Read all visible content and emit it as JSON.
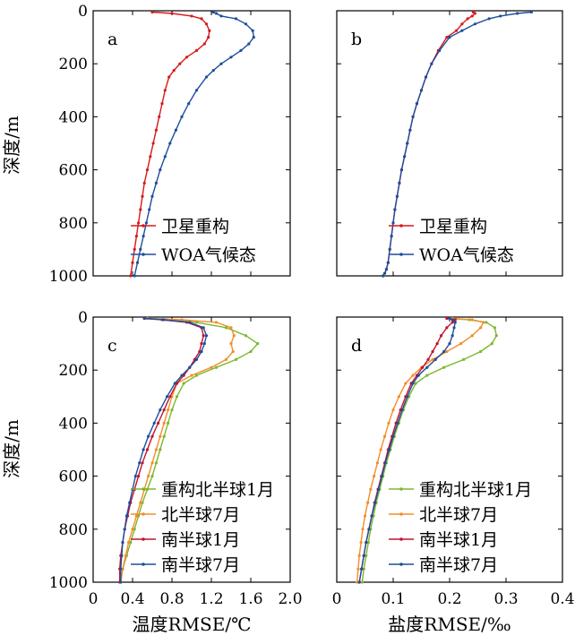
{
  "axis_labels": {
    "depth": "深度/m",
    "temp_x": "温度RMSE/℃",
    "sal_x": "盐度RMSE/‰"
  },
  "chart_data": [
    {
      "id": "a",
      "type": "line",
      "panel_label": "a",
      "xlim": [
        0,
        2.0
      ],
      "ylim": [
        0,
        1000
      ],
      "y_reversed": true,
      "show_x_ticks": false,
      "y_ticks": [
        "0",
        "200",
        "400",
        "600",
        "800",
        "1000"
      ],
      "legend": {
        "placement": "bottom-right"
      },
      "series": [
        {
          "name": "卫星重构",
          "color": "#d7191c",
          "x": [
            0.6,
            0.8,
            1.0,
            1.1,
            1.15,
            1.18,
            1.17,
            1.13,
            1.05,
            0.95,
            0.88,
            0.82,
            0.77,
            0.73,
            0.7,
            0.67,
            0.64,
            0.61,
            0.58,
            0.55,
            0.52,
            0.5,
            0.48,
            0.46,
            0.44,
            0.42,
            0.4,
            0.38
          ],
          "y": [
            5,
            10,
            20,
            30,
            50,
            75,
            100,
            125,
            150,
            175,
            200,
            225,
            250,
            300,
            350,
            400,
            450,
            500,
            550,
            600,
            650,
            700,
            750,
            800,
            850,
            900,
            950,
            1000
          ]
        },
        {
          "name": "WOA气候态",
          "color": "#1f4e9c",
          "x": [
            1.22,
            1.25,
            1.3,
            1.45,
            1.55,
            1.62,
            1.63,
            1.58,
            1.5,
            1.4,
            1.3,
            1.22,
            1.15,
            1.05,
            0.97,
            0.9,
            0.84,
            0.78,
            0.73,
            0.68,
            0.64,
            0.6,
            0.57,
            0.54,
            0.51,
            0.48,
            0.45,
            0.42
          ],
          "y": [
            5,
            10,
            20,
            30,
            50,
            75,
            100,
            125,
            150,
            175,
            200,
            225,
            250,
            300,
            350,
            400,
            450,
            500,
            550,
            600,
            650,
            700,
            750,
            800,
            850,
            900,
            950,
            1000
          ]
        }
      ]
    },
    {
      "id": "b",
      "type": "line",
      "panel_label": "b",
      "xlim": [
        0,
        0.4
      ],
      "ylim": [
        0,
        1000
      ],
      "y_reversed": true,
      "show_x_ticks": false,
      "show_y_ticks": false,
      "legend": {
        "placement": "bottom-right"
      },
      "series": [
        {
          "name": "卫星重构",
          "color": "#d7191c",
          "x": [
            0.242,
            0.245,
            0.24,
            0.232,
            0.222,
            0.212,
            0.195,
            0.18,
            0.168,
            0.158,
            0.15,
            0.142,
            0.135,
            0.13,
            0.125,
            0.12,
            0.115,
            0.111,
            0.107,
            0.103,
            0.1,
            0.097,
            0.094,
            0.091,
            0.088,
            0.085,
            0.082
          ],
          "y": [
            5,
            10,
            20,
            30,
            50,
            75,
            100,
            150,
            200,
            250,
            300,
            350,
            400,
            450,
            500,
            550,
            600,
            650,
            700,
            750,
            800,
            850,
            900,
            950,
            975,
            990,
            1000
          ]
        },
        {
          "name": "WOA气候态",
          "color": "#1f4e9c",
          "x": [
            0.345,
            0.32,
            0.29,
            0.27,
            0.245,
            0.222,
            0.2,
            0.182,
            0.168,
            0.158,
            0.15,
            0.142,
            0.135,
            0.13,
            0.125,
            0.12,
            0.115,
            0.111,
            0.107,
            0.103,
            0.1,
            0.097,
            0.094,
            0.091,
            0.088,
            0.085,
            0.082
          ],
          "y": [
            5,
            10,
            20,
            30,
            50,
            75,
            100,
            150,
            200,
            250,
            300,
            350,
            400,
            450,
            500,
            550,
            600,
            650,
            700,
            750,
            800,
            850,
            900,
            950,
            975,
            990,
            1000
          ]
        }
      ]
    },
    {
      "id": "c",
      "type": "line",
      "panel_label": "c",
      "xlim": [
        0,
        2.0
      ],
      "ylim": [
        0,
        1000
      ],
      "y_reversed": true,
      "x_ticks": [
        "0",
        "0.4",
        "0.8",
        "1.2",
        "1.6",
        "2.0"
      ],
      "y_ticks": [
        "0",
        "200",
        "400",
        "600",
        "800",
        "1000"
      ],
      "legend": {
        "placement": "bottom-right"
      },
      "series": [
        {
          "name": "重构北半球1月",
          "color": "#7cb82f",
          "x": [
            0.55,
            0.75,
            1.05,
            1.35,
            1.55,
            1.67,
            1.6,
            1.45,
            1.25,
            1.05,
            0.92,
            0.85,
            0.8,
            0.76,
            0.72,
            0.68,
            0.64,
            0.6,
            0.55,
            0.5,
            0.46,
            0.42,
            0.38,
            0.34,
            0.3,
            0.28
          ],
          "y": [
            5,
            10,
            20,
            40,
            70,
            100,
            130,
            160,
            190,
            220,
            250,
            300,
            350,
            400,
            450,
            500,
            550,
            600,
            650,
            700,
            750,
            800,
            850,
            900,
            950,
            1000
          ]
        },
        {
          "name": "北半球7月",
          "color": "#f28e2b",
          "x": [
            0.55,
            0.9,
            1.25,
            1.4,
            1.43,
            1.4,
            1.42,
            1.35,
            1.2,
            1.0,
            0.85,
            0.8,
            0.76,
            0.72,
            0.68,
            0.64,
            0.6,
            0.56,
            0.52,
            0.48,
            0.44,
            0.4,
            0.36,
            0.33,
            0.3,
            0.28
          ],
          "y": [
            5,
            10,
            20,
            40,
            70,
            100,
            130,
            160,
            190,
            220,
            250,
            300,
            350,
            400,
            450,
            500,
            550,
            600,
            650,
            700,
            750,
            800,
            850,
            900,
            950,
            1000
          ]
        },
        {
          "name": "南半球1月",
          "color": "#c0152f",
          "x": [
            0.52,
            0.7,
            0.95,
            1.1,
            1.12,
            1.1,
            1.08,
            1.03,
            0.98,
            0.92,
            0.85,
            0.78,
            0.72,
            0.66,
            0.6,
            0.55,
            0.5,
            0.46,
            0.42,
            0.38,
            0.35,
            0.32,
            0.3,
            0.28,
            0.27,
            0.27
          ],
          "y": [
            5,
            10,
            20,
            40,
            70,
            100,
            130,
            160,
            190,
            220,
            250,
            300,
            350,
            400,
            450,
            500,
            550,
            600,
            650,
            700,
            750,
            800,
            850,
            900,
            950,
            1000
          ]
        },
        {
          "name": "南半球7月",
          "color": "#1f4e9c",
          "x": [
            0.52,
            0.72,
            0.98,
            1.12,
            1.15,
            1.13,
            1.1,
            1.05,
            0.98,
            0.9,
            0.83,
            0.75,
            0.68,
            0.62,
            0.56,
            0.51,
            0.47,
            0.43,
            0.4,
            0.37,
            0.34,
            0.32,
            0.3,
            0.29,
            0.28,
            0.28
          ],
          "y": [
            5,
            10,
            20,
            40,
            70,
            100,
            130,
            160,
            190,
            220,
            250,
            300,
            350,
            400,
            450,
            500,
            550,
            600,
            650,
            700,
            750,
            800,
            850,
            900,
            950,
            1000
          ]
        }
      ]
    },
    {
      "id": "d",
      "type": "line",
      "panel_label": "d",
      "xlim": [
        0,
        0.4
      ],
      "ylim": [
        0,
        1000
      ],
      "y_reversed": true,
      "x_ticks": [
        "0",
        "0.1",
        "0.2",
        "0.3",
        "0.4"
      ],
      "show_y_ticks": false,
      "legend": {
        "placement": "bottom-right"
      },
      "series": [
        {
          "name": "重构北半球1月",
          "color": "#7cb82f",
          "x": [
            0.2,
            0.235,
            0.265,
            0.28,
            0.283,
            0.275,
            0.255,
            0.225,
            0.19,
            0.16,
            0.14,
            0.128,
            0.118,
            0.11,
            0.102,
            0.095,
            0.088,
            0.082,
            0.076,
            0.07,
            0.065,
            0.06,
            0.056,
            0.052,
            0.048,
            0.045
          ],
          "y": [
            5,
            10,
            20,
            40,
            70,
            100,
            130,
            160,
            190,
            220,
            250,
            300,
            350,
            400,
            450,
            500,
            550,
            600,
            650,
            700,
            750,
            800,
            850,
            900,
            950,
            1000
          ]
        },
        {
          "name": "北半球7月",
          "color": "#f28e2b",
          "x": [
            0.205,
            0.24,
            0.26,
            0.255,
            0.24,
            0.22,
            0.195,
            0.17,
            0.15,
            0.135,
            0.122,
            0.11,
            0.1,
            0.092,
            0.085,
            0.078,
            0.072,
            0.066,
            0.06,
            0.055,
            0.05,
            0.046,
            0.043,
            0.04,
            0.038,
            0.036
          ],
          "y": [
            5,
            10,
            20,
            40,
            70,
            100,
            130,
            160,
            190,
            220,
            250,
            300,
            350,
            400,
            450,
            500,
            550,
            600,
            650,
            700,
            750,
            800,
            850,
            900,
            950,
            1000
          ]
        },
        {
          "name": "南半球1月",
          "color": "#c0152f",
          "x": [
            0.195,
            0.21,
            0.205,
            0.195,
            0.185,
            0.178,
            0.17,
            0.162,
            0.152,
            0.142,
            0.132,
            0.122,
            0.113,
            0.105,
            0.098,
            0.091,
            0.085,
            0.079,
            0.073,
            0.067,
            0.062,
            0.057,
            0.052,
            0.048,
            0.044,
            0.04
          ],
          "y": [
            5,
            10,
            20,
            40,
            70,
            100,
            130,
            160,
            190,
            220,
            250,
            300,
            350,
            400,
            450,
            500,
            550,
            600,
            650,
            700,
            750,
            800,
            850,
            900,
            950,
            1000
          ]
        },
        {
          "name": "南半球7月",
          "color": "#1f4e9c",
          "x": [
            0.2,
            0.205,
            0.21,
            0.208,
            0.205,
            0.2,
            0.19,
            0.175,
            0.16,
            0.145,
            0.135,
            0.125,
            0.116,
            0.108,
            0.1,
            0.093,
            0.086,
            0.08,
            0.074,
            0.068,
            0.062,
            0.057,
            0.052,
            0.048,
            0.044,
            0.04
          ],
          "y": [
            5,
            10,
            20,
            40,
            70,
            100,
            130,
            160,
            190,
            220,
            250,
            300,
            350,
            400,
            450,
            500,
            550,
            600,
            650,
            700,
            750,
            800,
            850,
            900,
            950,
            1000
          ]
        }
      ]
    }
  ]
}
